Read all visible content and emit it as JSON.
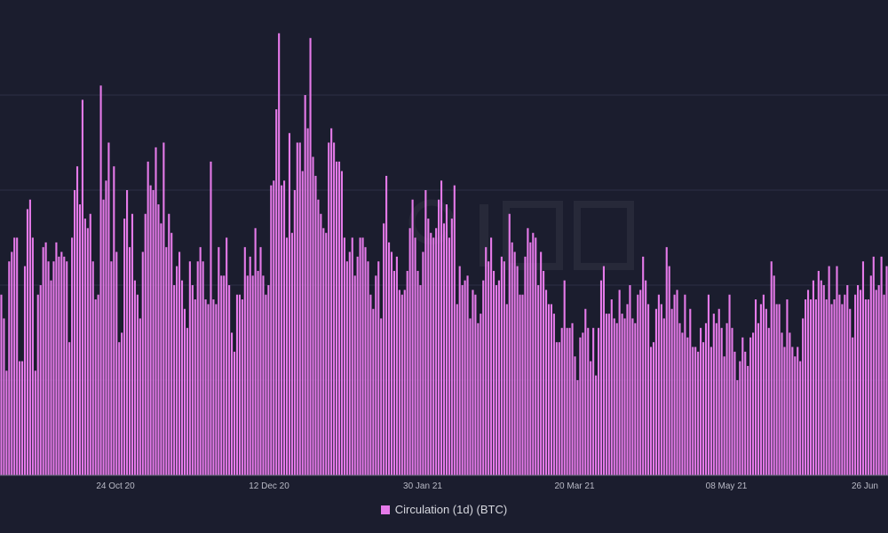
{
  "chart_data": {
    "type": "bar",
    "xlabel": "",
    "ylabel": "",
    "x_ticks": [
      "24 Oct 20",
      "12 Dec 20",
      "30 Jan 21",
      "20 Mar 21",
      "08 May 21",
      "26 Jun"
    ],
    "grid": true,
    "legend_position": "bottom-center",
    "ylim": [
      0,
      100
    ],
    "series": [
      {
        "name": "Circulation (1d) (BTC)",
        "color": "#e57ae9",
        "values": [
          38,
          33,
          22,
          45,
          47,
          50,
          50,
          24,
          24,
          44,
          56,
          58,
          50,
          22,
          38,
          40,
          48,
          49,
          45,
          41,
          45,
          49,
          46,
          47,
          46,
          45,
          28,
          50,
          60,
          65,
          57,
          79,
          54,
          52,
          55,
          45,
          37,
          38,
          82,
          58,
          62,
          70,
          45,
          65,
          47,
          28,
          30,
          54,
          60,
          48,
          55,
          41,
          38,
          33,
          47,
          55,
          66,
          61,
          60,
          69,
          57,
          53,
          70,
          48,
          55,
          51,
          40,
          44,
          47,
          41,
          35,
          31,
          45,
          40,
          37,
          45,
          48,
          45,
          37,
          36,
          66,
          37,
          36,
          48,
          42,
          42,
          50,
          40,
          30,
          26,
          38,
          38,
          37,
          48,
          42,
          46,
          42,
          52,
          43,
          48,
          42,
          38,
          40,
          61,
          62,
          77,
          93,
          61,
          62,
          50,
          72,
          51,
          60,
          70,
          70,
          64,
          80,
          73,
          92,
          67,
          63,
          58,
          55,
          52,
          51,
          70,
          73,
          70,
          66,
          66,
          64,
          50,
          45,
          47,
          50,
          42,
          46,
          50,
          50,
          48,
          45,
          38,
          35,
          42,
          45,
          33,
          53,
          63,
          49,
          47,
          43,
          46,
          39,
          38,
          39,
          43,
          52,
          58,
          50,
          43,
          40,
          47,
          60,
          54,
          51,
          50,
          52,
          58,
          62,
          53,
          57,
          50,
          54,
          61,
          36,
          44,
          40,
          41,
          42,
          33,
          39,
          38,
          32,
          34,
          41,
          48,
          45,
          50,
          43,
          40,
          41,
          46,
          45,
          36,
          55,
          49,
          47,
          44,
          38,
          38,
          46,
          52,
          49,
          51,
          50,
          40,
          47,
          43,
          39,
          36,
          36,
          34,
          28,
          28,
          31,
          41,
          31,
          31,
          32,
          25,
          20,
          29,
          30,
          35,
          31,
          24,
          31,
          21,
          31,
          41,
          44,
          34,
          34,
          37,
          33,
          32,
          39,
          34,
          33,
          36,
          40,
          33,
          32,
          38,
          39,
          46,
          41,
          36,
          27,
          28,
          35,
          38,
          36,
          33,
          48,
          44,
          35,
          38,
          39,
          32,
          30,
          38,
          29,
          35,
          27,
          27,
          26,
          31,
          28,
          32,
          38,
          27,
          34,
          32,
          35,
          31,
          25,
          32,
          38,
          31,
          26,
          20,
          24,
          29,
          26,
          23,
          29,
          30,
          37,
          32,
          36,
          38,
          35,
          31,
          45,
          42,
          36,
          36,
          30,
          27,
          37,
          30,
          27,
          25,
          27,
          24,
          33,
          37,
          39,
          37,
          41,
          37,
          43,
          41,
          40,
          37,
          44,
          36,
          37,
          44,
          38,
          36,
          38,
          40,
          35,
          29,
          38,
          40,
          39,
          45,
          37,
          37,
          42,
          46,
          39,
          40,
          46,
          38,
          44
        ]
      }
    ]
  }
}
